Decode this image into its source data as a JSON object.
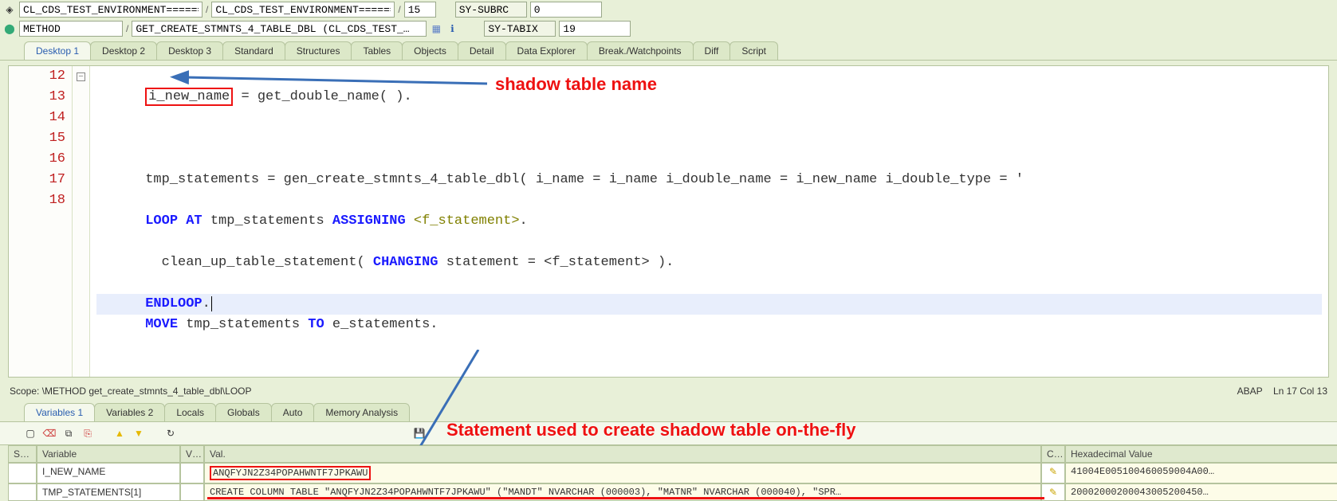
{
  "toolbar1": {
    "field1": "CL_CDS_TEST_ENVIRONMENT======…",
    "field2": "CL_CDS_TEST_ENVIRONMENT======…",
    "field3": "15",
    "label_subrc": "SY-SUBRC",
    "val_subrc": "0"
  },
  "toolbar2": {
    "field1": "METHOD",
    "field2": "GET_CREATE_STMNTS_4_TABLE_DBL (CL_CDS_TEST_…",
    "label_tabix": "SY-TABIX",
    "val_tabix": "19"
  },
  "tabs": [
    "Desktop 1",
    "Desktop 2",
    "Desktop 3",
    "Standard",
    "Structures",
    "Tables",
    "Objects",
    "Detail",
    "Data Explorer",
    "Break./Watchpoints",
    "Diff",
    "Script"
  ],
  "active_tab": 0,
  "code": {
    "lines": [
      {
        "n": 12
      },
      {
        "n": 13
      },
      {
        "n": 14
      },
      {
        "n": 15
      },
      {
        "n": 16
      },
      {
        "n": 17
      },
      {
        "n": 18
      }
    ],
    "l12_var": "i_new_name",
    "l12_rest": " = get_double_name( ).",
    "l14": "      tmp_statements = gen_create_stmnts_4_table_dbl( i_name = i_name i_double_name = i_new_name i_double_type = '",
    "l15_a": "LOOP AT",
    "l15_b": "tmp_statements",
    "l15_c": "ASSIGNING",
    "l15_d": "<f_statement>",
    "l16_a": "clean_up_table_statement(",
    "l16_b": "CHANGING",
    "l16_c": "statement = <f_statement> ).",
    "l17": "ENDLOOP",
    "l18_a": "MOVE",
    "l18_b": "tmp_statements",
    "l18_c": "TO",
    "l18_d": "e_statements"
  },
  "status": {
    "scope": "Scope: \\METHOD get_create_stmnts_4_table_dbl\\LOOP",
    "lang": "ABAP",
    "pos": "Ln  17 Col  13"
  },
  "var_tabs": [
    "Variables 1",
    "Variables 2",
    "Locals",
    "Globals",
    "Auto",
    "Memory Analysis"
  ],
  "active_var_tab": 0,
  "grid": {
    "headers": [
      "S…",
      "Variable",
      "V…",
      "Val.",
      "C…",
      "Hexadecimal Value"
    ],
    "rows": [
      {
        "var": "I_NEW_NAME",
        "val": "ANQFYJN2Z34POPAHWNTF7JPKAWU",
        "hex": "41004E005100460059004A00…",
        "boxed": true
      },
      {
        "var": "TMP_STATEMENTS[1]",
        "val": "   CREATE      COLUMN TABLE \"ANQFYJN2Z34POPAHWNTF7JPKAWU\"      (\"MANDT\" NVARCHAR (000003),      \"MATNR\" NVARCHAR (000040),      \"SPR…",
        "hex": "20002000200043005200450…",
        "boxed": false
      }
    ]
  },
  "annotations": {
    "a1": "shadow table name",
    "a2": "Statement used to create shadow table on-the-fly"
  },
  "colors": {
    "accent": "#e11",
    "kw": "#1a1aff",
    "bg": "#e8f0d8"
  }
}
